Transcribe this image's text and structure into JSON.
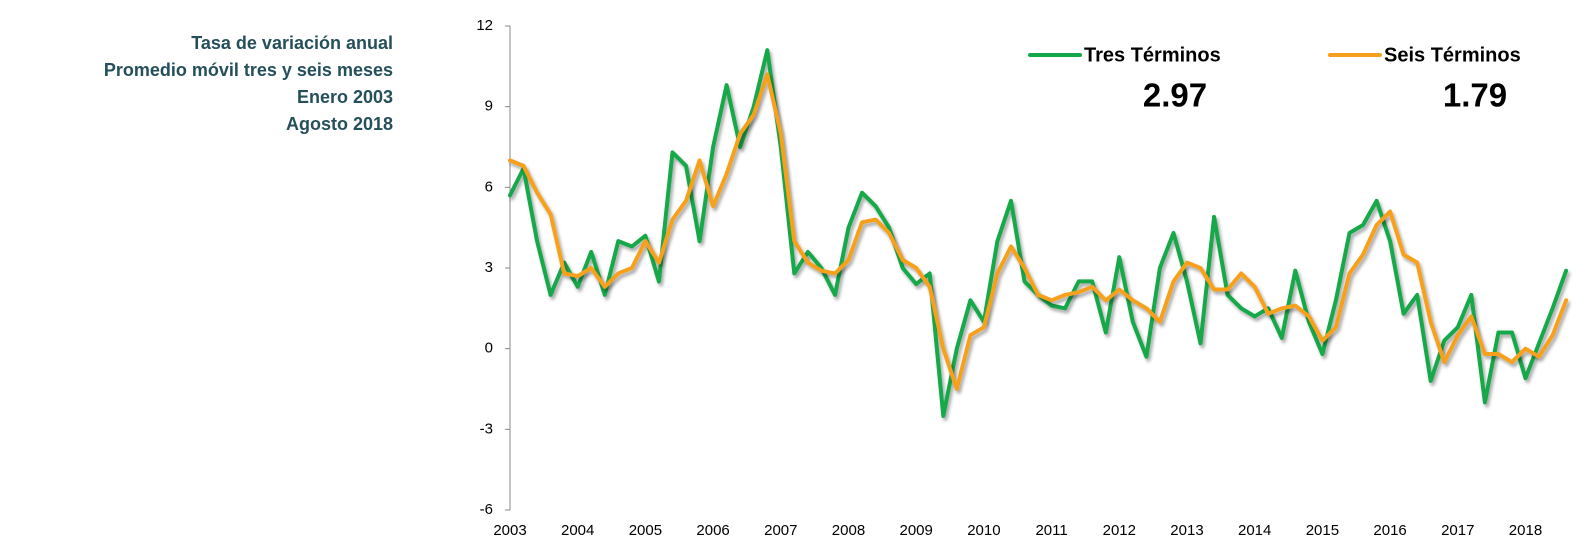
{
  "chart_data": {
    "type": "line",
    "title_lines": [
      "Tasa de variación anual",
      "Promedio móvil tres y seis meses",
      "Enero 2003",
      "Agosto 2018"
    ],
    "x": [
      2003.0,
      2003.2,
      2003.4,
      2003.6,
      2003.8,
      2004.0,
      2004.2,
      2004.4,
      2004.6,
      2004.8,
      2005.0,
      2005.2,
      2005.4,
      2005.6,
      2005.8,
      2006.0,
      2006.2,
      2006.4,
      2006.6,
      2006.8,
      2007.0,
      2007.2,
      2007.4,
      2007.6,
      2007.8,
      2008.0,
      2008.2,
      2008.4,
      2008.6,
      2008.8,
      2009.0,
      2009.2,
      2009.4,
      2009.6,
      2009.8,
      2010.0,
      2010.2,
      2010.4,
      2010.6,
      2010.8,
      2011.0,
      2011.2,
      2011.4,
      2011.6,
      2011.8,
      2012.0,
      2012.2,
      2012.4,
      2012.6,
      2012.8,
      2013.0,
      2013.2,
      2013.4,
      2013.6,
      2013.8,
      2014.0,
      2014.2,
      2014.4,
      2014.6,
      2014.8,
      2015.0,
      2015.2,
      2015.4,
      2015.6,
      2015.8,
      2016.0,
      2016.2,
      2016.4,
      2016.6,
      2016.8,
      2017.0,
      2017.2,
      2017.4,
      2017.6,
      2017.8,
      2018.0,
      2018.2,
      2018.4,
      2018.6
    ],
    "series": [
      {
        "name": "Tres Términos",
        "color": "#12a84a",
        "annotation": "2.97",
        "values": [
          5.7,
          6.7,
          4.0,
          2.0,
          3.2,
          2.3,
          3.6,
          2.0,
          4.0,
          3.8,
          4.2,
          2.5,
          7.3,
          6.8,
          4.0,
          7.5,
          9.8,
          7.5,
          9.0,
          11.1,
          7.5,
          2.8,
          3.6,
          3.0,
          2.0,
          4.5,
          5.8,
          5.3,
          4.5,
          3.0,
          2.4,
          2.8,
          -2.5,
          0.0,
          1.8,
          1.0,
          4.0,
          5.5,
          2.5,
          2.0,
          1.6,
          1.5,
          2.5,
          2.5,
          0.6,
          3.4,
          1.0,
          -0.3,
          3.0,
          4.3,
          2.5,
          0.2,
          4.9,
          2.0,
          1.5,
          1.2,
          1.5,
          0.4,
          2.9,
          1.0,
          -0.2,
          1.8,
          4.3,
          4.6,
          5.5,
          4.0,
          1.3,
          2.0,
          -1.2,
          0.3,
          0.8,
          2.0,
          -2.0,
          0.6,
          0.6,
          -1.1,
          0.2,
          1.5,
          2.9
        ]
      },
      {
        "name": "Seis Términos",
        "color": "#f7a01d",
        "annotation": "1.79",
        "values": [
          7.0,
          6.8,
          5.8,
          5.0,
          2.8,
          2.7,
          3.0,
          2.3,
          2.8,
          3.0,
          4.0,
          3.2,
          4.8,
          5.5,
          7.0,
          5.3,
          6.5,
          8.0,
          8.7,
          10.2,
          8.0,
          4.0,
          3.2,
          2.9,
          2.8,
          3.3,
          4.7,
          4.8,
          4.3,
          3.3,
          3.0,
          2.3,
          0.0,
          -1.5,
          0.5,
          0.8,
          2.8,
          3.8,
          3.0,
          2.0,
          1.8,
          2.0,
          2.1,
          2.3,
          1.8,
          2.2,
          1.8,
          1.5,
          1.0,
          2.5,
          3.2,
          3.0,
          2.2,
          2.2,
          2.8,
          2.3,
          1.3,
          1.5,
          1.6,
          1.2,
          0.3,
          0.8,
          2.8,
          3.5,
          4.6,
          5.1,
          3.5,
          3.2,
          1.0,
          -0.5,
          0.5,
          1.2,
          -0.2,
          -0.2,
          -0.5,
          0.0,
          -0.3,
          0.5,
          1.8
        ]
      }
    ],
    "xlim": [
      2003,
      2018.65
    ],
    "xticks": [
      2003,
      2004,
      2005,
      2006,
      2007,
      2008,
      2009,
      2010,
      2011,
      2012,
      2013,
      2014,
      2015,
      2016,
      2017,
      2018
    ],
    "ylim": [
      -6,
      12
    ],
    "yticks": [
      -6,
      -3,
      0,
      3,
      6,
      9,
      12
    ],
    "legend": "top-right"
  }
}
